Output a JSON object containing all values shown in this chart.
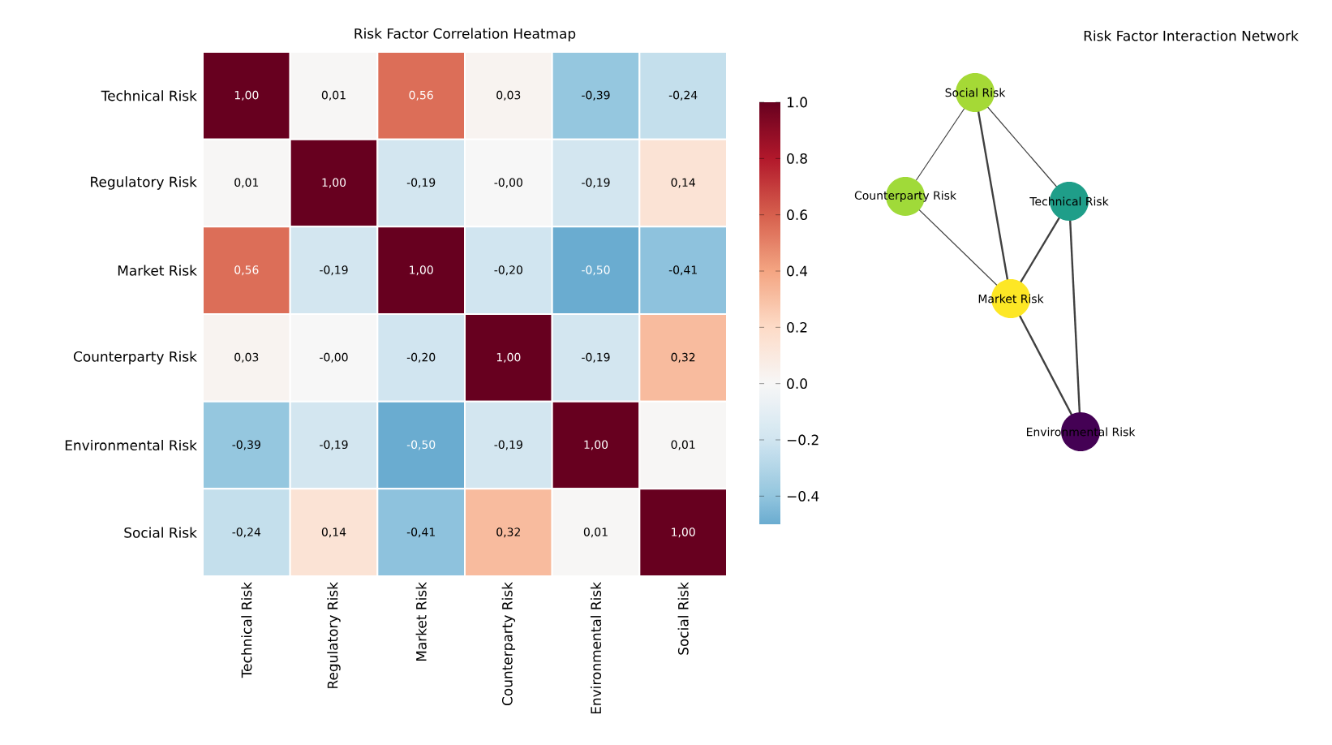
{
  "chart_data": [
    {
      "type": "heatmap",
      "title": "Risk Factor Correlation Heatmap",
      "categories": [
        "Technical Risk",
        "Regulatory Risk",
        "Market Risk",
        "Counterparty Risk",
        "Environmental Risk",
        "Social Risk"
      ],
      "y_categories": [
        "Technical Risk",
        "Regulatory Risk",
        "Market Risk",
        "Counterparty Risk",
        "Environmental Risk",
        "Social Risk"
      ],
      "cells": [
        [
          1.0,
          0.01,
          0.56,
          0.03,
          -0.39,
          -0.24
        ],
        [
          0.01,
          1.0,
          -0.19,
          -0.0,
          -0.19,
          0.14
        ],
        [
          0.56,
          -0.19,
          1.0,
          -0.2,
          -0.5,
          -0.41
        ],
        [
          0.03,
          -0.0,
          -0.2,
          1.0,
          -0.19,
          0.32
        ],
        [
          -0.39,
          -0.19,
          -0.5,
          -0.19,
          1.0,
          0.01
        ],
        [
          -0.24,
          0.14,
          -0.41,
          0.32,
          0.01,
          1.0
        ]
      ],
      "cell_labels": [
        [
          "1,00",
          "0,01",
          "0,56",
          "0,03",
          "-0,39",
          "-0,24"
        ],
        [
          "0,01",
          "1,00",
          "-0,19",
          "-0,00",
          "-0,19",
          "0,14"
        ],
        [
          "0,56",
          "-0,19",
          "1,00",
          "-0,20",
          "-0,50",
          "-0,41"
        ],
        [
          "0,03",
          "-0,00",
          "-0,20",
          "1,00",
          "-0,19",
          "0,32"
        ],
        [
          "-0,39",
          "-0,19",
          "-0,50",
          "-0,19",
          "1,00",
          "0,01"
        ],
        [
          "-0,24",
          "0,14",
          "-0,41",
          "0,32",
          "0,01",
          "1,00"
        ]
      ],
      "clim": [
        -0.5,
        1.0
      ],
      "cticks": [
        {
          "value": -0.4,
          "label": "−0.4"
        },
        {
          "value": -0.2,
          "label": "−0.2"
        },
        {
          "value": 0.0,
          "label": "0.0"
        },
        {
          "value": 0.2,
          "label": "0.2"
        },
        {
          "value": 0.4,
          "label": "0.4"
        },
        {
          "value": 0.6,
          "label": "0.6"
        },
        {
          "value": 0.8,
          "label": "0.8"
        },
        {
          "value": 1.0,
          "label": "1.0"
        }
      ]
    },
    {
      "type": "other",
      "title": "Risk Factor Interaction Network",
      "categories": [
        "Social Risk",
        "Counterparty Risk",
        "Technical Risk",
        "Market Risk",
        "Environmental Risk"
      ],
      "colors": [
        "#a5d936",
        "#a0da39",
        "#1f9e89",
        "#fde725",
        "#440154"
      ]
    }
  ]
}
